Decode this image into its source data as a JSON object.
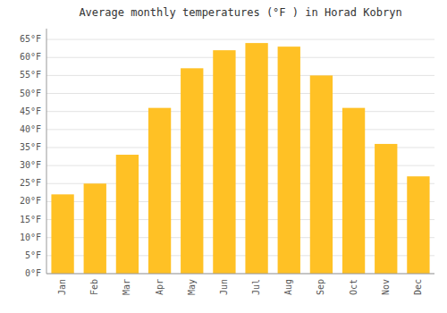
{
  "chart_data": {
    "type": "bar",
    "title": "Average monthly temperatures (°F ) in Horad Kobryn",
    "categories": [
      "Jan",
      "Feb",
      "Mar",
      "Apr",
      "May",
      "Jun",
      "Jul",
      "Aug",
      "Sep",
      "Oct",
      "Nov",
      "Dec"
    ],
    "values": [
      22,
      25,
      33,
      46,
      57,
      62,
      64,
      63,
      55,
      46,
      36,
      27
    ],
    "color": "#FFC125",
    "ylim": [
      0,
      68
    ],
    "yticks": [
      {
        "value": 0,
        "label": "0°F"
      },
      {
        "value": 5,
        "label": "5°F"
      },
      {
        "value": 10,
        "label": "10°F"
      },
      {
        "value": 15,
        "label": "15°F"
      },
      {
        "value": 20,
        "label": "20°F"
      },
      {
        "value": 25,
        "label": "25°F"
      },
      {
        "value": 30,
        "label": "30°F"
      },
      {
        "value": 35,
        "label": "35°F"
      },
      {
        "value": 40,
        "label": "40°F"
      },
      {
        "value": 45,
        "label": "45°F"
      },
      {
        "value": 50,
        "label": "50°F"
      },
      {
        "value": 55,
        "label": "55°F"
      },
      {
        "value": 60,
        "label": "60°F"
      },
      {
        "value": 65,
        "label": "65°F"
      }
    ],
    "grid": true
  }
}
